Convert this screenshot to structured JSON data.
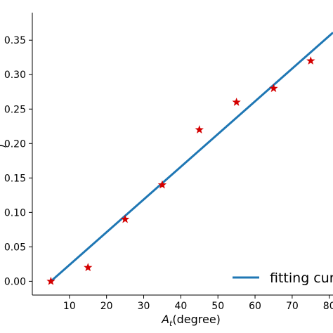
{
  "chart_data": {
    "type": "scatter",
    "xlabel_main": "A",
    "xlabel_sub": "t",
    "xlabel_rest": "(degree)",
    "ylabel": ")",
    "xlim": [
      0,
      81
    ],
    "ylim": [
      -0.02,
      0.39
    ],
    "xticks": [
      10,
      20,
      30,
      40,
      50,
      60,
      70,
      80
    ],
    "xtick_labels": [
      "10",
      "20",
      "30",
      "40",
      "50",
      "60",
      "70",
      "80"
    ],
    "yticks": [
      0.0,
      0.05,
      0.1,
      0.15,
      0.2,
      0.25,
      0.3,
      0.35
    ],
    "ytick_labels": [
      "0.00",
      "0.05",
      "0.10",
      "0.15",
      "0.20",
      "0.25",
      "0.30",
      "0.35"
    ],
    "grid": false,
    "legend_position": "bottom-right",
    "series": [
      {
        "kind": "scatter",
        "marker": "star",
        "color": "#d40000",
        "x": [
          5,
          15,
          25,
          35,
          45,
          55,
          65,
          75
        ],
        "y": [
          0.0,
          0.02,
          0.09,
          0.14,
          0.22,
          0.26,
          0.28,
          0.32
        ]
      },
      {
        "kind": "line",
        "name": "fitting cur",
        "color": "#1f77b4",
        "x": [
          5,
          81
        ],
        "y": [
          0.0,
          0.361
        ]
      }
    ]
  }
}
